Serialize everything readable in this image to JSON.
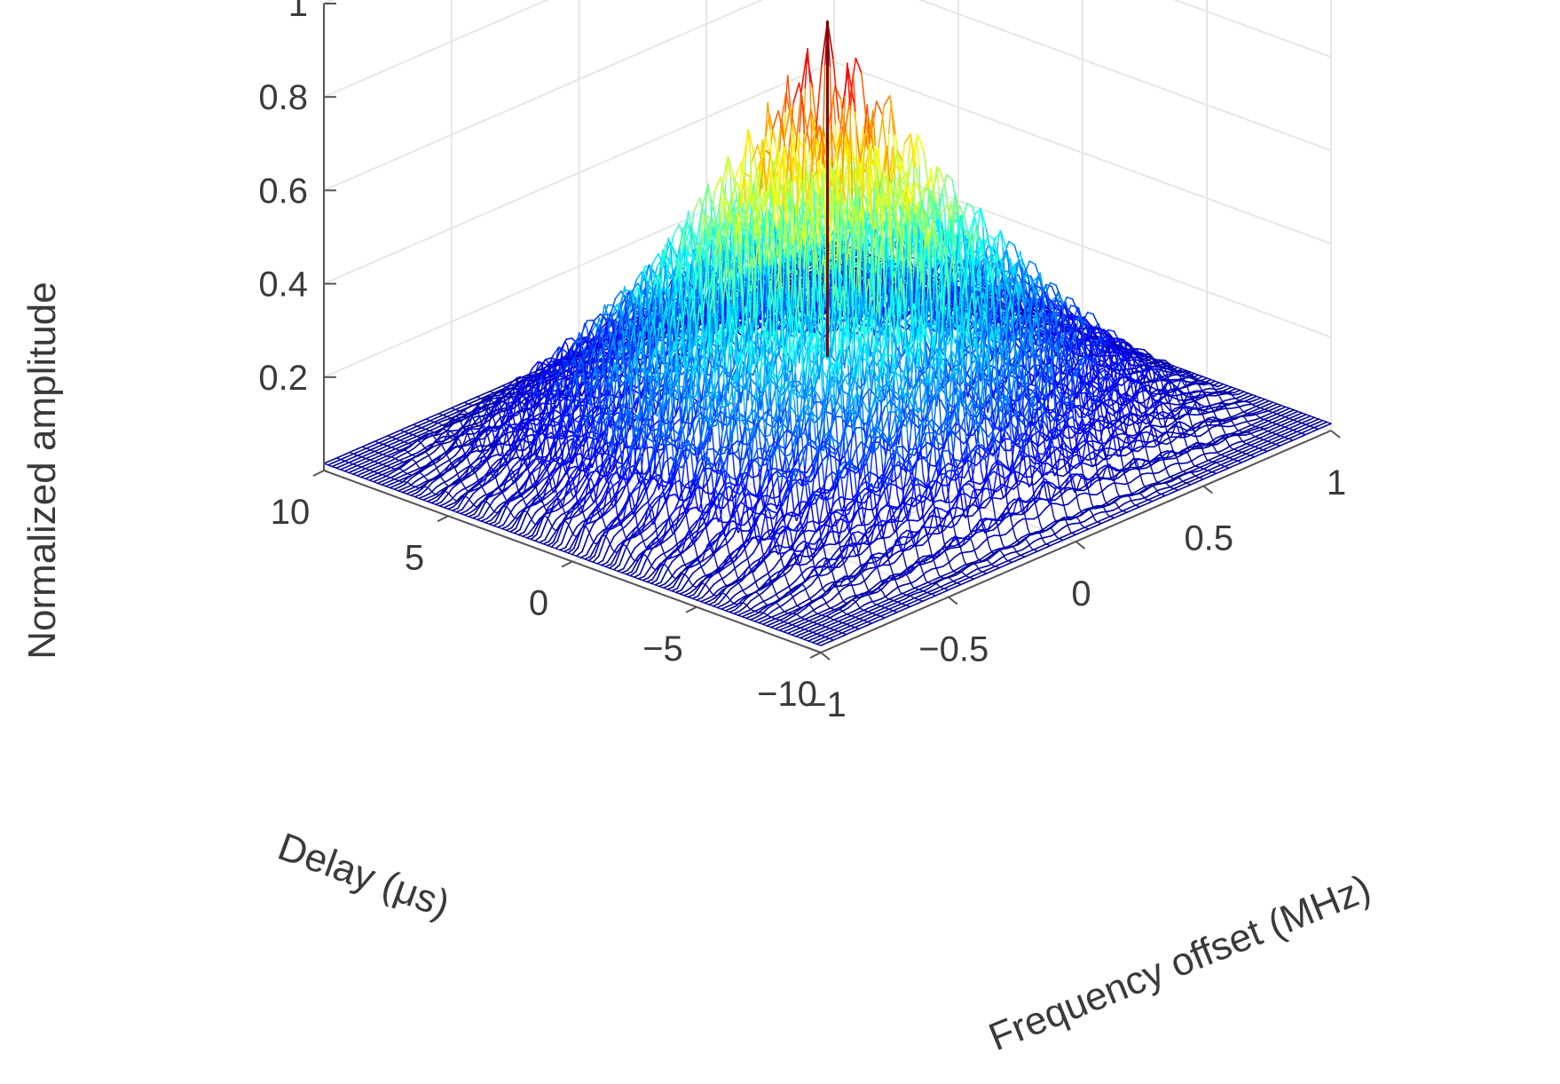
{
  "chart_data": {
    "type": "surface",
    "title": "",
    "xlabel": "Frequency offset (MHz)",
    "ylabel": "Delay (μs)",
    "zlabel": "Normalized amplitude",
    "xlim": [
      -1,
      1
    ],
    "ylim": [
      -10,
      10
    ],
    "zlim": [
      0,
      1
    ],
    "x_ticks": [
      -1,
      -0.5,
      0,
      0.5,
      1
    ],
    "x_tick_labels": [
      "−1",
      "−0.5",
      "0",
      "0.5",
      "1"
    ],
    "y_ticks": [
      -10,
      -5,
      0,
      5,
      10
    ],
    "y_tick_labels": [
      "−10",
      "−5",
      "0",
      "5",
      "10"
    ],
    "z_ticks": [
      0.2,
      0.4,
      0.6,
      0.8,
      1
    ],
    "z_tick_labels": [
      "0.2",
      "0.4",
      "0.6",
      "0.8",
      "1"
    ],
    "grid": true,
    "colormap": "jet",
    "colormap_stops": [
      "#00008f",
      "#0000ff",
      "#0080ff",
      "#00ffff",
      "#80ff80",
      "#ffff00",
      "#ff8000",
      "#ff0000",
      "#800000"
    ],
    "peak": {
      "x": 0,
      "y": 0,
      "z": 0.92
    },
    "shape": "ridged pyramid: amplitude decreases linearly from the central peak toward |x|=1 and |y|=10, with periodic ridges along delay and a low floor outside |delay| = 10 μs"
  }
}
